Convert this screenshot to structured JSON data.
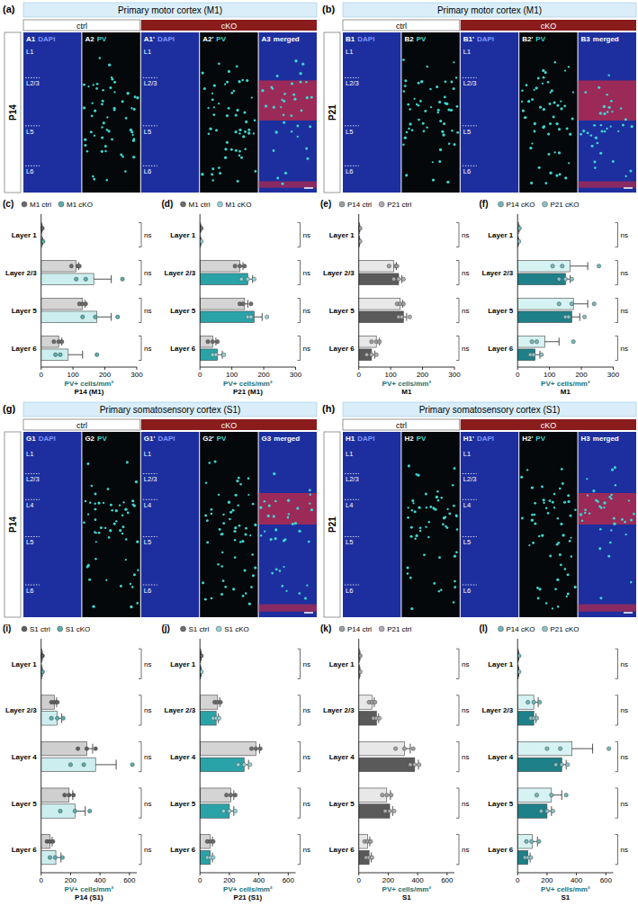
{
  "image_panels": [
    {
      "panel_label": "(a)",
      "title": "Primary motor cortex (M1)",
      "groups": [
        "ctrl",
        "cKO"
      ],
      "age": "P14",
      "tiles": [
        {
          "id": "A1",
          "label": "DAPI"
        },
        {
          "id": "A2",
          "label": "PV"
        },
        {
          "id": "A1'",
          "label": "DAPI"
        },
        {
          "id": "A2'",
          "label": "PV"
        },
        {
          "id": "A3",
          "label": "merged"
        }
      ],
      "layers": [
        "L1",
        "L2/3",
        "L5",
        "L6"
      ]
    },
    {
      "panel_label": "(b)",
      "title": "Primary motor cortex (M1)",
      "groups": [
        "ctrl",
        "cKO"
      ],
      "age": "P21",
      "tiles": [
        {
          "id": "B1",
          "label": "DAPI"
        },
        {
          "id": "B2",
          "label": "PV"
        },
        {
          "id": "B1'",
          "label": "DAPI"
        },
        {
          "id": "B2'",
          "label": "PV"
        },
        {
          "id": "B3",
          "label": "merged"
        }
      ],
      "layers": [
        "L1",
        "L2/3",
        "L5",
        "L6"
      ]
    },
    {
      "panel_label": "(g)",
      "title": "Primary somatosensory cortex (S1)",
      "groups": [
        "ctrl",
        "cKO"
      ],
      "age": "P14",
      "tiles": [
        {
          "id": "G1",
          "label": "DAPI"
        },
        {
          "id": "G2",
          "label": "PV"
        },
        {
          "id": "G1'",
          "label": "DAPI"
        },
        {
          "id": "G2'",
          "label": "PV"
        },
        {
          "id": "G3",
          "label": "merged"
        }
      ],
      "layers": [
        "L1",
        "L2/3",
        "L4",
        "L5",
        "L6"
      ]
    },
    {
      "panel_label": "(h)",
      "title": "Primary somatosensory cortex (S1)",
      "groups": [
        "ctrl",
        "cKO"
      ],
      "age": "P21",
      "tiles": [
        {
          "id": "H1",
          "label": "DAPI"
        },
        {
          "id": "H2",
          "label": "PV"
        },
        {
          "id": "H1'",
          "label": "DAPI"
        },
        {
          "id": "H2'",
          "label": "PV"
        },
        {
          "id": "H3",
          "label": "merged"
        }
      ],
      "layers": [
        "L1",
        "L2/3",
        "L4",
        "L5",
        "L6"
      ]
    }
  ],
  "chart_data": [
    {
      "type": "bar",
      "orientation": "horizontal",
      "legend": "top",
      "panel_label": "(c)",
      "xlabel": "PV+ cells/mm²",
      "subtitle": "P14 (M1)",
      "categories": [
        "Layer 1",
        "Layer 2/3",
        "Layer 5",
        "Layer 6"
      ],
      "xlim": [
        0,
        300
      ],
      "xticks": [
        0,
        100,
        200,
        300
      ],
      "annotations": [
        "ns",
        "ns",
        "ns",
        "ns"
      ],
      "series": [
        {
          "name": "M1 ctrl",
          "color": "#d4d4d4",
          "values": [
            2,
            110,
            130,
            55
          ],
          "errors": [
            1,
            8,
            8,
            10
          ],
          "points": [
            [
              0,
              2,
              4
            ],
            [
              95,
              115,
              120
            ],
            [
              120,
              130,
              140
            ],
            [
              40,
              55,
              65
            ]
          ]
        },
        {
          "name": "M1 cKO",
          "color": "#cdeeee",
          "values": [
            3,
            165,
            175,
            85
          ],
          "errors": [
            2,
            55,
            45,
            45
          ],
          "points": [
            [
              0,
              3,
              6
            ],
            [
              110,
              140,
              255
            ],
            [
              130,
              170,
              240
            ],
            [
              45,
              60,
              175
            ]
          ]
        }
      ]
    },
    {
      "type": "bar",
      "orientation": "horizontal",
      "legend": "top",
      "panel_label": "(d)",
      "xlabel": "PV+ cells/mm²",
      "subtitle": "P21 (M1)",
      "categories": [
        "Layer 1",
        "Layer 2/3",
        "Layer 5",
        "Layer 6"
      ],
      "xlim": [
        0,
        300
      ],
      "xticks": [
        0,
        100,
        200,
        300
      ],
      "annotations": [
        "ns",
        "ns",
        "ns",
        "ns"
      ],
      "series": [
        {
          "name": "M1 ctrl",
          "color": "#d4d4d4",
          "values": [
            2,
            125,
            140,
            40
          ],
          "errors": [
            1,
            10,
            10,
            10
          ],
          "points": [
            [
              0,
              2,
              4
            ],
            [
              110,
              125,
              140
            ],
            [
              125,
              135,
              160
            ],
            [
              25,
              40,
              55
            ]
          ]
        },
        {
          "name": "M1 cKO",
          "color": "#2aa3a8",
          "values": [
            2,
            150,
            170,
            55
          ],
          "errors": [
            1,
            15,
            25,
            15
          ],
          "points": [
            [
              0,
              2,
              4
            ],
            [
              130,
              150,
              170
            ],
            [
              150,
              160,
              210
            ],
            [
              40,
              50,
              75
            ]
          ]
        }
      ]
    },
    {
      "type": "bar",
      "orientation": "horizontal",
      "legend": "top",
      "panel_label": "(e)",
      "xlabel": "PV+ cells/mm²",
      "subtitle": "M1",
      "categories": [
        "Layer 1",
        "Layer 2/3",
        "Layer 5",
        "Layer 6"
      ],
      "xlim": [
        0,
        300
      ],
      "xticks": [
        0,
        100,
        200,
        300
      ],
      "annotations": [
        "ns",
        "ns",
        "ns",
        "ns"
      ],
      "series": [
        {
          "name": "P14 ctrl",
          "color": "#e8e8e8",
          "values": [
            2,
            110,
            130,
            55
          ],
          "errors": [
            1,
            8,
            8,
            10
          ],
          "points": [
            [
              0,
              2,
              4
            ],
            [
              95,
              115,
              120
            ],
            [
              120,
              130,
              140
            ],
            [
              40,
              55,
              65
            ]
          ]
        },
        {
          "name": "P21 ctrl",
          "color": "#5a5a5a",
          "values": [
            2,
            125,
            140,
            40
          ],
          "errors": [
            1,
            10,
            10,
            10
          ],
          "points": [
            [
              0,
              2,
              4
            ],
            [
              110,
              125,
              140
            ],
            [
              125,
              135,
              160
            ],
            [
              25,
              40,
              55
            ]
          ]
        }
      ]
    },
    {
      "type": "bar",
      "orientation": "horizontal",
      "legend": "top",
      "panel_label": "(f)",
      "xlabel": "PV+ cells/mm²",
      "subtitle": "M1",
      "categories": [
        "Layer 1",
        "Layer 2/3",
        "Layer 5",
        "Layer 6"
      ],
      "xlim": [
        0,
        300
      ],
      "xticks": [
        0,
        100,
        200,
        300
      ],
      "annotations": [
        "ns",
        "ns",
        "ns",
        "ns"
      ],
      "series": [
        {
          "name": "P14 cKO",
          "color": "#d6f2f2",
          "values": [
            3,
            165,
            175,
            85
          ],
          "errors": [
            2,
            55,
            45,
            45
          ],
          "points": [
            [
              0,
              3,
              6
            ],
            [
              110,
              140,
              255
            ],
            [
              130,
              170,
              240
            ],
            [
              45,
              60,
              175
            ]
          ]
        },
        {
          "name": "P21 cKO",
          "color": "#1e8088",
          "values": [
            2,
            150,
            170,
            55
          ],
          "errors": [
            1,
            15,
            25,
            15
          ],
          "points": [
            [
              0,
              2,
              4
            ],
            [
              130,
              150,
              170
            ],
            [
              150,
              160,
              210
            ],
            [
              40,
              50,
              75
            ]
          ]
        }
      ]
    },
    {
      "type": "bar",
      "orientation": "horizontal",
      "legend": "top",
      "panel_label": "(i)",
      "xlabel": "PV+ cells/mm²",
      "subtitle": "P14 (S1)",
      "categories": [
        "Layer 1",
        "Layer 2/3",
        "Layer 4",
        "Layer 5",
        "Layer 6"
      ],
      "xlim": [
        0,
        650
      ],
      "xticks": [
        0,
        200,
        400,
        600
      ],
      "annotations": [
        "ns",
        "ns",
        "ns",
        "ns",
        "ns"
      ],
      "series": [
        {
          "name": "S1 ctrl",
          "color": "#cfcfcf",
          "values": [
            5,
            90,
            310,
            190,
            60
          ],
          "errors": [
            3,
            15,
            40,
            25,
            15
          ],
          "points": [
            [
              0,
              5,
              10
            ],
            [
              70,
              90,
              110
            ],
            [
              250,
              310,
              370
            ],
            [
              160,
              190,
              220
            ],
            [
              40,
              60,
              80
            ]
          ]
        },
        {
          "name": "S1 cKO",
          "color": "#cdeeee",
          "values": [
            5,
            110,
            370,
            230,
            100
          ],
          "errors": [
            3,
            30,
            140,
            70,
            35
          ],
          "points": [
            [
              0,
              5,
              10
            ],
            [
              70,
              110,
              150
            ],
            [
              200,
              290,
              620
            ],
            [
              130,
              230,
              330
            ],
            [
              60,
              95,
              145
            ]
          ]
        }
      ]
    },
    {
      "type": "bar",
      "orientation": "horizontal",
      "legend": "top",
      "panel_label": "(j)",
      "xlabel": "PV+ cells/mm²",
      "subtitle": "P21 (S1)",
      "categories": [
        "Layer 1",
        "Layer 2/3",
        "Layer 4",
        "Layer 5",
        "Layer 6"
      ],
      "xlim": [
        0,
        650
      ],
      "xticks": [
        0,
        200,
        400,
        600
      ],
      "annotations": [
        "ns",
        "ns",
        "ns",
        "ns",
        "ns"
      ],
      "series": [
        {
          "name": "S1 ctrl",
          "color": "#d4d4d4",
          "values": [
            5,
            120,
            380,
            210,
            70
          ],
          "errors": [
            3,
            15,
            25,
            20,
            15
          ],
          "points": [
            [
              0,
              5,
              10
            ],
            [
              100,
              120,
              140
            ],
            [
              350,
              380,
              410
            ],
            [
              180,
              210,
              240
            ],
            [
              50,
              70,
              90
            ]
          ]
        },
        {
          "name": "S1 cKO",
          "color": "#2aa3a8",
          "values": [
            5,
            110,
            300,
            200,
            70
          ],
          "errors": [
            3,
            15,
            30,
            30,
            15
          ],
          "points": [
            [
              0,
              5,
              10
            ],
            [
              90,
              110,
              130
            ],
            [
              260,
              300,
              340
            ],
            [
              160,
              200,
              240
            ],
            [
              50,
              70,
              90
            ]
          ]
        }
      ]
    },
    {
      "type": "bar",
      "orientation": "horizontal",
      "legend": "top",
      "panel_label": "(k)",
      "xlabel": "PV+ cells/mm²",
      "subtitle": "S1",
      "categories": [
        "Layer 1",
        "Layer 2/3",
        "Layer 4",
        "Layer 5",
        "Layer 6"
      ],
      "xlim": [
        0,
        650
      ],
      "xticks": [
        0,
        200,
        400,
        600
      ],
      "annotations": [
        "ns",
        "ns",
        "ns",
        "ns",
        "ns"
      ],
      "series": [
        {
          "name": "P14 ctrl",
          "color": "#e8e8e8",
          "values": [
            5,
            90,
            310,
            190,
            60
          ],
          "errors": [
            3,
            15,
            40,
            25,
            15
          ],
          "points": [
            [
              0,
              5,
              10
            ],
            [
              70,
              90,
              110
            ],
            [
              250,
              310,
              370
            ],
            [
              160,
              190,
              220
            ],
            [
              40,
              60,
              80
            ]
          ]
        },
        {
          "name": "P21 ctrl",
          "color": "#5a5a5a",
          "values": [
            5,
            120,
            380,
            210,
            70
          ],
          "errors": [
            3,
            15,
            25,
            20,
            15
          ],
          "points": [
            [
              0,
              5,
              10
            ],
            [
              100,
              120,
              140
            ],
            [
              350,
              380,
              410
            ],
            [
              180,
              210,
              240
            ],
            [
              50,
              70,
              90
            ]
          ]
        }
      ]
    },
    {
      "type": "bar",
      "orientation": "horizontal",
      "legend": "top",
      "panel_label": "(l)",
      "xlabel": "PV+ cells/mm²",
      "subtitle": "S1",
      "categories": [
        "Layer 1",
        "Layer 2/3",
        "Layer 4",
        "Layer 5",
        "Layer 6"
      ],
      "xlim": [
        0,
        650
      ],
      "xticks": [
        0,
        200,
        400,
        600
      ],
      "annotations": [
        "ns",
        "ns",
        "ns",
        "ns",
        "ns"
      ],
      "series": [
        {
          "name": "P14 cKO",
          "color": "#d6f2f2",
          "values": [
            5,
            110,
            370,
            230,
            100
          ],
          "errors": [
            3,
            30,
            140,
            70,
            35
          ],
          "points": [
            [
              0,
              5,
              10
            ],
            [
              70,
              110,
              150
            ],
            [
              200,
              290,
              620
            ],
            [
              130,
              230,
              330
            ],
            [
              60,
              95,
              145
            ]
          ]
        },
        {
          "name": "P21 cKO",
          "color": "#1e8088",
          "values": [
            5,
            110,
            300,
            200,
            70
          ],
          "errors": [
            3,
            15,
            30,
            30,
            15
          ],
          "points": [
            [
              0,
              5,
              10
            ],
            [
              90,
              110,
              130
            ],
            [
              260,
              300,
              340
            ],
            [
              160,
              200,
              240
            ],
            [
              50,
              70,
              90
            ]
          ]
        }
      ]
    }
  ]
}
